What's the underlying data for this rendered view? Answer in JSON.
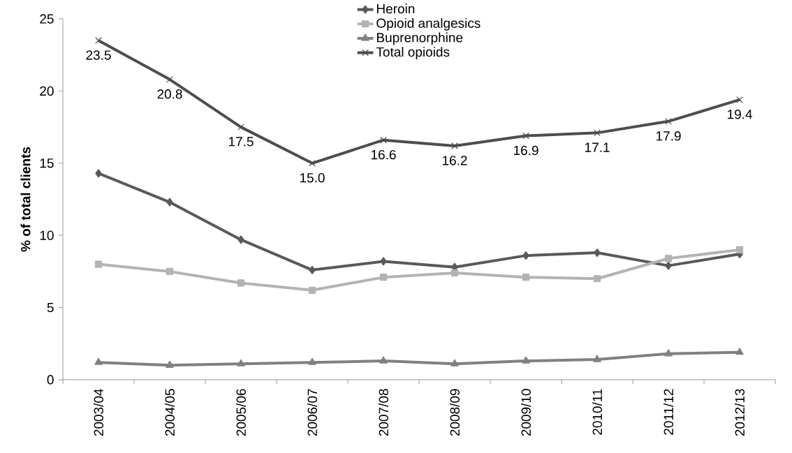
{
  "chart_data": {
    "type": "line",
    "ylabel": "% of total clients",
    "categories": [
      "2003/04",
      "2004/05",
      "2005/06",
      "2006/07",
      "2007/08",
      "2008/09",
      "2009/10",
      "2010/11",
      "2011/12",
      "2012/13"
    ],
    "series": [
      {
        "name": "Heroin",
        "color": "#595959",
        "marker": "diamond",
        "values": [
          14.3,
          12.3,
          9.7,
          7.6,
          8.2,
          7.8,
          8.6,
          8.8,
          7.9,
          8.7
        ]
      },
      {
        "name": "Opioid analgesics",
        "color": "#b3b3b3",
        "marker": "square",
        "values": [
          8.0,
          7.5,
          6.7,
          6.2,
          7.1,
          7.4,
          7.1,
          7.0,
          8.4,
          9.0
        ]
      },
      {
        "name": "Buprenorphine",
        "color": "#808080",
        "marker": "triangle",
        "values": [
          1.2,
          1.0,
          1.1,
          1.2,
          1.3,
          1.1,
          1.3,
          1.4,
          1.8,
          1.9
        ]
      },
      {
        "name": "Total opioids",
        "color": "#4d4d4d",
        "marker": "cross",
        "values": [
          23.5,
          20.8,
          17.5,
          15.0,
          16.6,
          16.2,
          16.9,
          17.1,
          17.9,
          19.4
        ],
        "value_labels": [
          "23.5",
          "20.8",
          "17.5",
          "15.0",
          "16.6",
          "16.2",
          "16.9",
          "17.1",
          "17.9",
          "19.4"
        ]
      }
    ],
    "ylim": [
      0,
      25
    ],
    "yticks": [
      0,
      5,
      10,
      15,
      20,
      25
    ],
    "grid": false,
    "legend": "top"
  }
}
